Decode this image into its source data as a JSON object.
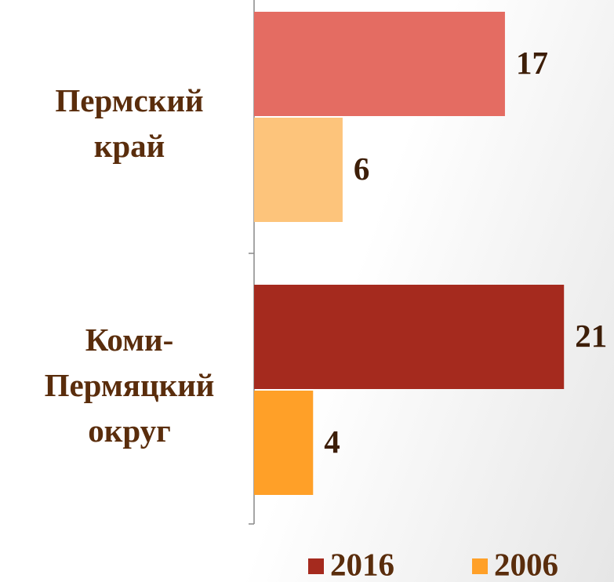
{
  "chart_data": {
    "type": "bar",
    "orientation": "horizontal",
    "categories": [
      "Пермский край",
      "Коми-Пермяцкий округ"
    ],
    "series": [
      {
        "name": "2016",
        "color": "#a52a1e",
        "point_colors": [
          "#e46c62",
          "#a52a1e"
        ],
        "values": [
          17,
          21
        ]
      },
      {
        "name": "2006",
        "color": "#ffa028",
        "point_colors": [
          "#fdc47b",
          "#ffa028"
        ],
        "values": [
          6,
          4
        ]
      }
    ],
    "legend": "bottom"
  }
}
